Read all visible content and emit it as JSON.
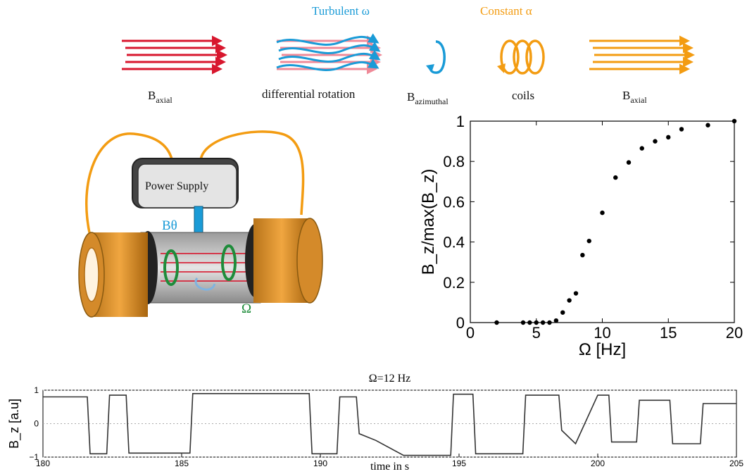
{
  "header": {
    "turbulent_label": "Turbulent ω",
    "constant_label": "Constant α"
  },
  "process": {
    "step1": {
      "main": "B",
      "sub": "axial"
    },
    "step2": {
      "text": "differential rotation"
    },
    "step3": {
      "main": "B",
      "sub": "azimuthal"
    },
    "step4": {
      "text": "coils"
    },
    "step5": {
      "main": "B",
      "sub": "axial"
    }
  },
  "apparatus": {
    "power_supply_label": "Power Supply",
    "b_theta_label": "Bθ",
    "omega_label": "Ω"
  },
  "colors": {
    "red": "#d8172e",
    "pink": "#ef8a98",
    "blue": "#1a9bd7",
    "orange": "#f39c12",
    "green": "#1e8c3a"
  },
  "chart_data": [
    {
      "type": "scatter",
      "xlabel": "Ω  [Hz]",
      "ylabel": "B_z/max(B_z)",
      "xlim": [
        0,
        20
      ],
      "ylim": [
        0,
        1
      ],
      "xticks": [
        "0",
        "5",
        "10",
        "15",
        "20"
      ],
      "yticks": [
        "0",
        "0.2",
        "0.4",
        "0.6",
        "0.8",
        "1"
      ],
      "points": [
        [
          2,
          0
        ],
        [
          4,
          0
        ],
        [
          4.5,
          0
        ],
        [
          5,
          0
        ],
        [
          5.5,
          0
        ],
        [
          6,
          0
        ],
        [
          6.5,
          0.01
        ],
        [
          7,
          0.05
        ],
        [
          7.5,
          0.11
        ],
        [
          8,
          0.145
        ],
        [
          8.5,
          0.335
        ],
        [
          9,
          0.405
        ],
        [
          10,
          0.545
        ],
        [
          11,
          0.72
        ],
        [
          12,
          0.795
        ],
        [
          13,
          0.865
        ],
        [
          14,
          0.9
        ],
        [
          15,
          0.92
        ],
        [
          16,
          0.96
        ],
        [
          18,
          0.98
        ],
        [
          20,
          1.0
        ]
      ]
    },
    {
      "type": "line",
      "title": "Ω=12 Hz",
      "xlabel": "time in s",
      "ylabel": "B_z [a.u]",
      "xlim": [
        180,
        205
      ],
      "ylim": [
        -1,
        1
      ],
      "xticks": [
        "180",
        "185",
        "190",
        "195",
        "200",
        "205"
      ],
      "yticks": [
        "1",
        "0",
        "−1"
      ],
      "segments": [
        [
          180,
          0.8
        ],
        [
          181.6,
          0.8
        ],
        [
          181.7,
          -0.9
        ],
        [
          182.3,
          -0.9
        ],
        [
          182.4,
          0.85
        ],
        [
          183.0,
          0.85
        ],
        [
          183.1,
          -0.88
        ],
        [
          185.3,
          -0.88
        ],
        [
          185.4,
          0.9
        ],
        [
          189.6,
          0.9
        ],
        [
          189.7,
          -0.9
        ],
        [
          190.6,
          -0.9
        ],
        [
          190.7,
          0.8
        ],
        [
          191.3,
          0.8
        ],
        [
          191.4,
          -0.3
        ],
        [
          192.0,
          -0.5
        ],
        [
          193.0,
          -0.95
        ],
        [
          194.7,
          -0.95
        ],
        [
          194.8,
          0.88
        ],
        [
          195.5,
          0.88
        ],
        [
          195.6,
          -0.9
        ],
        [
          197.3,
          -0.9
        ],
        [
          197.4,
          0.85
        ],
        [
          198.6,
          0.85
        ],
        [
          198.7,
          -0.2
        ],
        [
          199.2,
          -0.6
        ],
        [
          200.0,
          0.85
        ],
        [
          200.4,
          0.85
        ],
        [
          200.5,
          -0.55
        ],
        [
          201.4,
          -0.55
        ],
        [
          201.5,
          0.7
        ],
        [
          202.6,
          0.7
        ],
        [
          202.7,
          -0.6
        ],
        [
          203.7,
          -0.6
        ],
        [
          203.8,
          0.6
        ],
        [
          205,
          0.6
        ]
      ]
    }
  ]
}
